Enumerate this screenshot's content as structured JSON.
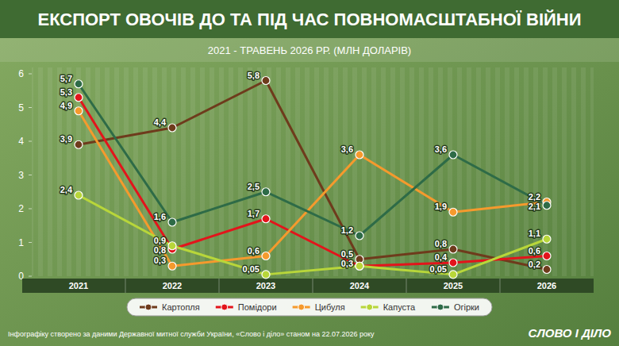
{
  "chart_data": {
    "type": "line",
    "title": "ЕКСПОРТ ОВОЧІВ ДО ТА ПІД ЧАС ПОВНОМАСШТАБНОЇ ВІЙНИ",
    "subtitle": "2021 - ТРАВЕНЬ 2026 РР. (МЛН ДОЛАРІВ)",
    "categories": [
      "2021",
      "2022",
      "2023",
      "2024",
      "2025",
      "2026"
    ],
    "series": [
      {
        "name": "Картопля",
        "color": "#6e3b1c",
        "values": [
          3.9,
          4.4,
          5.8,
          0.5,
          0.8,
          0.2
        ],
        "value_labels": [
          "3,9",
          "4,4",
          "5,8",
          "0,5",
          "0,8",
          "0,2"
        ]
      },
      {
        "name": "Помідори",
        "color": "#e3141b",
        "values": [
          5.3,
          0.8,
          1.7,
          0.3,
          0.4,
          0.6
        ],
        "value_labels": [
          "5,3",
          "0,8",
          "1,7",
          "0,3",
          "0,4",
          "0,6"
        ]
      },
      {
        "name": "Цибуля",
        "color": "#f59a2d",
        "values": [
          4.9,
          0.3,
          0.6,
          3.6,
          1.9,
          2.2
        ],
        "value_labels": [
          "4,9",
          "0,3",
          "0,6",
          "3,6",
          "1,9",
          "2,2"
        ]
      },
      {
        "name": "Капуста",
        "color": "#b8d63a",
        "values": [
          2.4,
          0.9,
          0.05,
          0.3,
          0.05,
          1.1
        ],
        "value_labels": [
          "2,4",
          "0,9",
          "0,05",
          null,
          "0,05",
          "1,1"
        ]
      },
      {
        "name": "Огірки",
        "color": "#2e6b47",
        "values": [
          5.7,
          1.6,
          2.5,
          1.2,
          3.6,
          2.1
        ],
        "value_labels": [
          "5,7",
          "1,6",
          "2,5",
          "1,2",
          "3,6",
          "2,1"
        ]
      }
    ],
    "ylim": [
      0,
      6
    ],
    "yticks": [
      0,
      1,
      2,
      3,
      4,
      5,
      6
    ],
    "grid": false,
    "legend": "bottom",
    "data_labels": true,
    "marker": "circle",
    "source": "Інфографіку створено за даними Державної митної служби України, «Слово і діло» станом на 22.07.2026 року",
    "logo": "СЛОВО І ДІЛО"
  }
}
